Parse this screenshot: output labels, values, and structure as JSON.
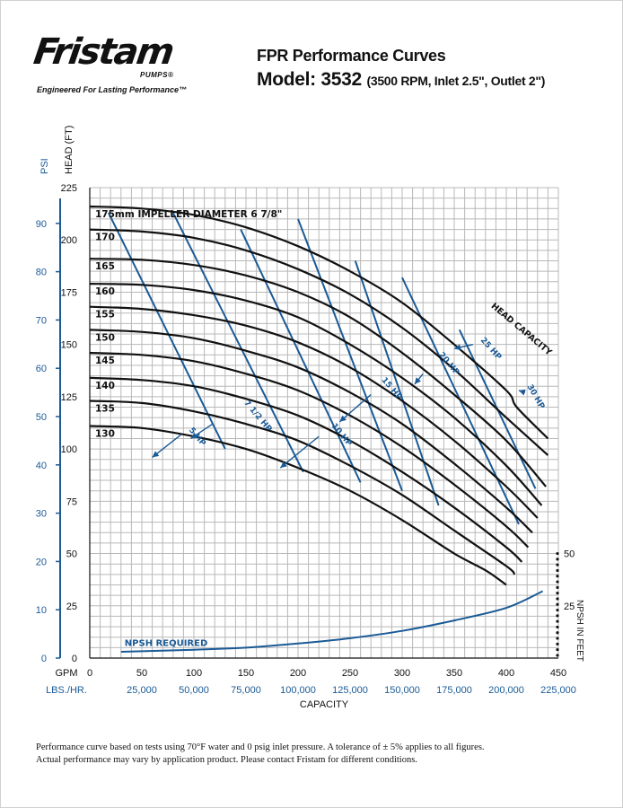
{
  "header": {
    "brand": "Fristam",
    "brand_sub": "PUMPS®",
    "tagline": "Engineered For Lasting Performance™",
    "title": "FPR Performance Curves",
    "model_main": "Model: 3532",
    "model_sub": "(3500 RPM, Inlet 2.5\", Outlet 2\")"
  },
  "footnote": {
    "line1": "Performance curve based on tests using 70°F water and 0 psig inlet pressure. A tolerance of ± 5% applies to all figures.",
    "line2": "Actual performance may vary by application product. Please contact Fristam for different conditions."
  },
  "colors": {
    "blue": "#1a5a96",
    "curve": "#111111",
    "grid": "#b8b8b8"
  },
  "chart_data": {
    "type": "line",
    "xlabel": "CAPACITY",
    "x_unit_label": "GPM",
    "x2_unit_label": "LBS./HR.",
    "ylabel": "HEAD (FT)",
    "y2label": "PSI",
    "y3label": "NPSH IN FEET",
    "xlim": [
      0,
      450
    ],
    "ylim": [
      0,
      225
    ],
    "x_ticks": [
      0,
      50,
      100,
      150,
      200,
      250,
      300,
      350,
      400,
      450
    ],
    "y_ticks": [
      0,
      25,
      50,
      75,
      100,
      125,
      150,
      175,
      200,
      225
    ],
    "x2_ticks": [
      {
        "gpm": 50,
        "label": "25,000"
      },
      {
        "gpm": 100,
        "label": "50,000"
      },
      {
        "gpm": 150,
        "label": "75,000"
      },
      {
        "gpm": 200,
        "label": "100,000"
      },
      {
        "gpm": 250,
        "label": "125,000"
      },
      {
        "gpm": 300,
        "label": "150,000"
      },
      {
        "gpm": 350,
        "label": "175,000"
      },
      {
        "gpm": 400,
        "label": "200,000"
      },
      {
        "gpm": 450,
        "label": "225,000"
      }
    ],
    "psi_ticks": [
      {
        "psi": 0,
        "label": "0"
      },
      {
        "psi": 10,
        "label": "10"
      },
      {
        "psi": 20,
        "label": "20"
      },
      {
        "psi": 30,
        "label": "30"
      },
      {
        "psi": 40,
        "label": "40"
      },
      {
        "psi": 50,
        "label": "50"
      },
      {
        "psi": 60,
        "label": "60"
      },
      {
        "psi": 70,
        "label": "70"
      },
      {
        "psi": 80,
        "label": "80"
      },
      {
        "psi": 90,
        "label": "90"
      }
    ],
    "npsh_ticks": [
      {
        "head": 0,
        "label": ""
      },
      {
        "head": 25,
        "label": "25"
      },
      {
        "head": 50,
        "label": "50"
      }
    ],
    "series": [
      {
        "name": "175mm IMPELLER DIAMETER 6 7/8\"",
        "x": [
          0,
          50,
          100,
          150,
          200,
          250,
          300,
          350,
          400,
          410,
          440
        ],
        "y": [
          216,
          215,
          212,
          206,
          197,
          185,
          170,
          150,
          128,
          120,
          105
        ]
      },
      {
        "name": "170",
        "x": [
          0,
          50,
          100,
          150,
          200,
          250,
          300,
          350,
          400,
          440
        ],
        "y": [
          205,
          204,
          201,
          195,
          186,
          174,
          158,
          138,
          115,
          97
        ]
      },
      {
        "name": "165",
        "x": [
          0,
          50,
          100,
          150,
          200,
          250,
          300,
          350,
          400,
          438
        ],
        "y": [
          191,
          190.5,
          188,
          183,
          175,
          163,
          146,
          126,
          104,
          82
        ]
      },
      {
        "name": "160",
        "x": [
          0,
          50,
          100,
          150,
          200,
          250,
          300,
          350,
          400,
          434
        ],
        "y": [
          179,
          178.5,
          176,
          171,
          163,
          150,
          134,
          115,
          92,
          73
        ]
      },
      {
        "name": "155",
        "x": [
          0,
          50,
          100,
          150,
          200,
          250,
          300,
          350,
          400,
          430
        ],
        "y": [
          168,
          167,
          164,
          159,
          151,
          139,
          123,
          104,
          82,
          67
        ]
      },
      {
        "name": "150",
        "x": [
          0,
          50,
          100,
          150,
          200,
          250,
          300,
          350,
          400,
          425
        ],
        "y": [
          157,
          156,
          153,
          147,
          139,
          127,
          112,
          93,
          72,
          60
        ]
      },
      {
        "name": "145",
        "x": [
          0,
          50,
          100,
          150,
          200,
          250,
          300,
          350,
          400,
          421
        ],
        "y": [
          146,
          145,
          142,
          136,
          128,
          116,
          101,
          83,
          63,
          53
        ]
      },
      {
        "name": "140",
        "x": [
          0,
          50,
          100,
          150,
          200,
          250,
          300,
          350,
          400,
          415
        ],
        "y": [
          134,
          133,
          130,
          124,
          116,
          104,
          89,
          72,
          53,
          46
        ]
      },
      {
        "name": "135",
        "x": [
          0,
          50,
          100,
          150,
          200,
          250,
          300,
          350,
          400,
          408
        ],
        "y": [
          123,
          122,
          118,
          112,
          104,
          92,
          78,
          61,
          44,
          40
        ]
      },
      {
        "name": "130",
        "x": [
          0,
          50,
          100,
          150,
          200,
          250,
          300,
          350,
          380,
          400
        ],
        "y": [
          111,
          110,
          106,
          100,
          91,
          80,
          66,
          50,
          42,
          35
        ]
      },
      {
        "name": "NPSH REQUIRED",
        "x": [
          30,
          100,
          150,
          200,
          250,
          300,
          350,
          400,
          435
        ],
        "y": [
          3,
          4,
          5,
          7,
          9.5,
          13,
          18,
          24,
          32
        ]
      }
    ],
    "hp_lines": [
      {
        "name": "5 HP",
        "x": [
          18,
          130
        ],
        "y": [
          213,
          100
        ]
      },
      {
        "name": "7 1/2 HP",
        "x": [
          80,
          205
        ],
        "y": [
          213,
          89
        ]
      },
      {
        "name": "10 HP",
        "x": [
          145,
          260
        ],
        "y": [
          205,
          84
        ]
      },
      {
        "name": "15 HP",
        "x": [
          200,
          300
        ],
        "y": [
          210,
          80
        ]
      },
      {
        "name": "20 HP",
        "x": [
          255,
          335
        ],
        "y": [
          190,
          73
        ]
      },
      {
        "name": "25 HP",
        "x": [
          300,
          412
        ],
        "y": [
          182,
          64
        ]
      },
      {
        "name": "30 HP",
        "x": [
          355,
          428
        ],
        "y": [
          157,
          81
        ]
      }
    ],
    "annotations": [
      {
        "text": "HEAD CAPACITY",
        "x": 385,
        "y": 168
      },
      {
        "text": "NPSH REQUIRED",
        "x": 30,
        "y": 4
      }
    ],
    "grid": true
  }
}
